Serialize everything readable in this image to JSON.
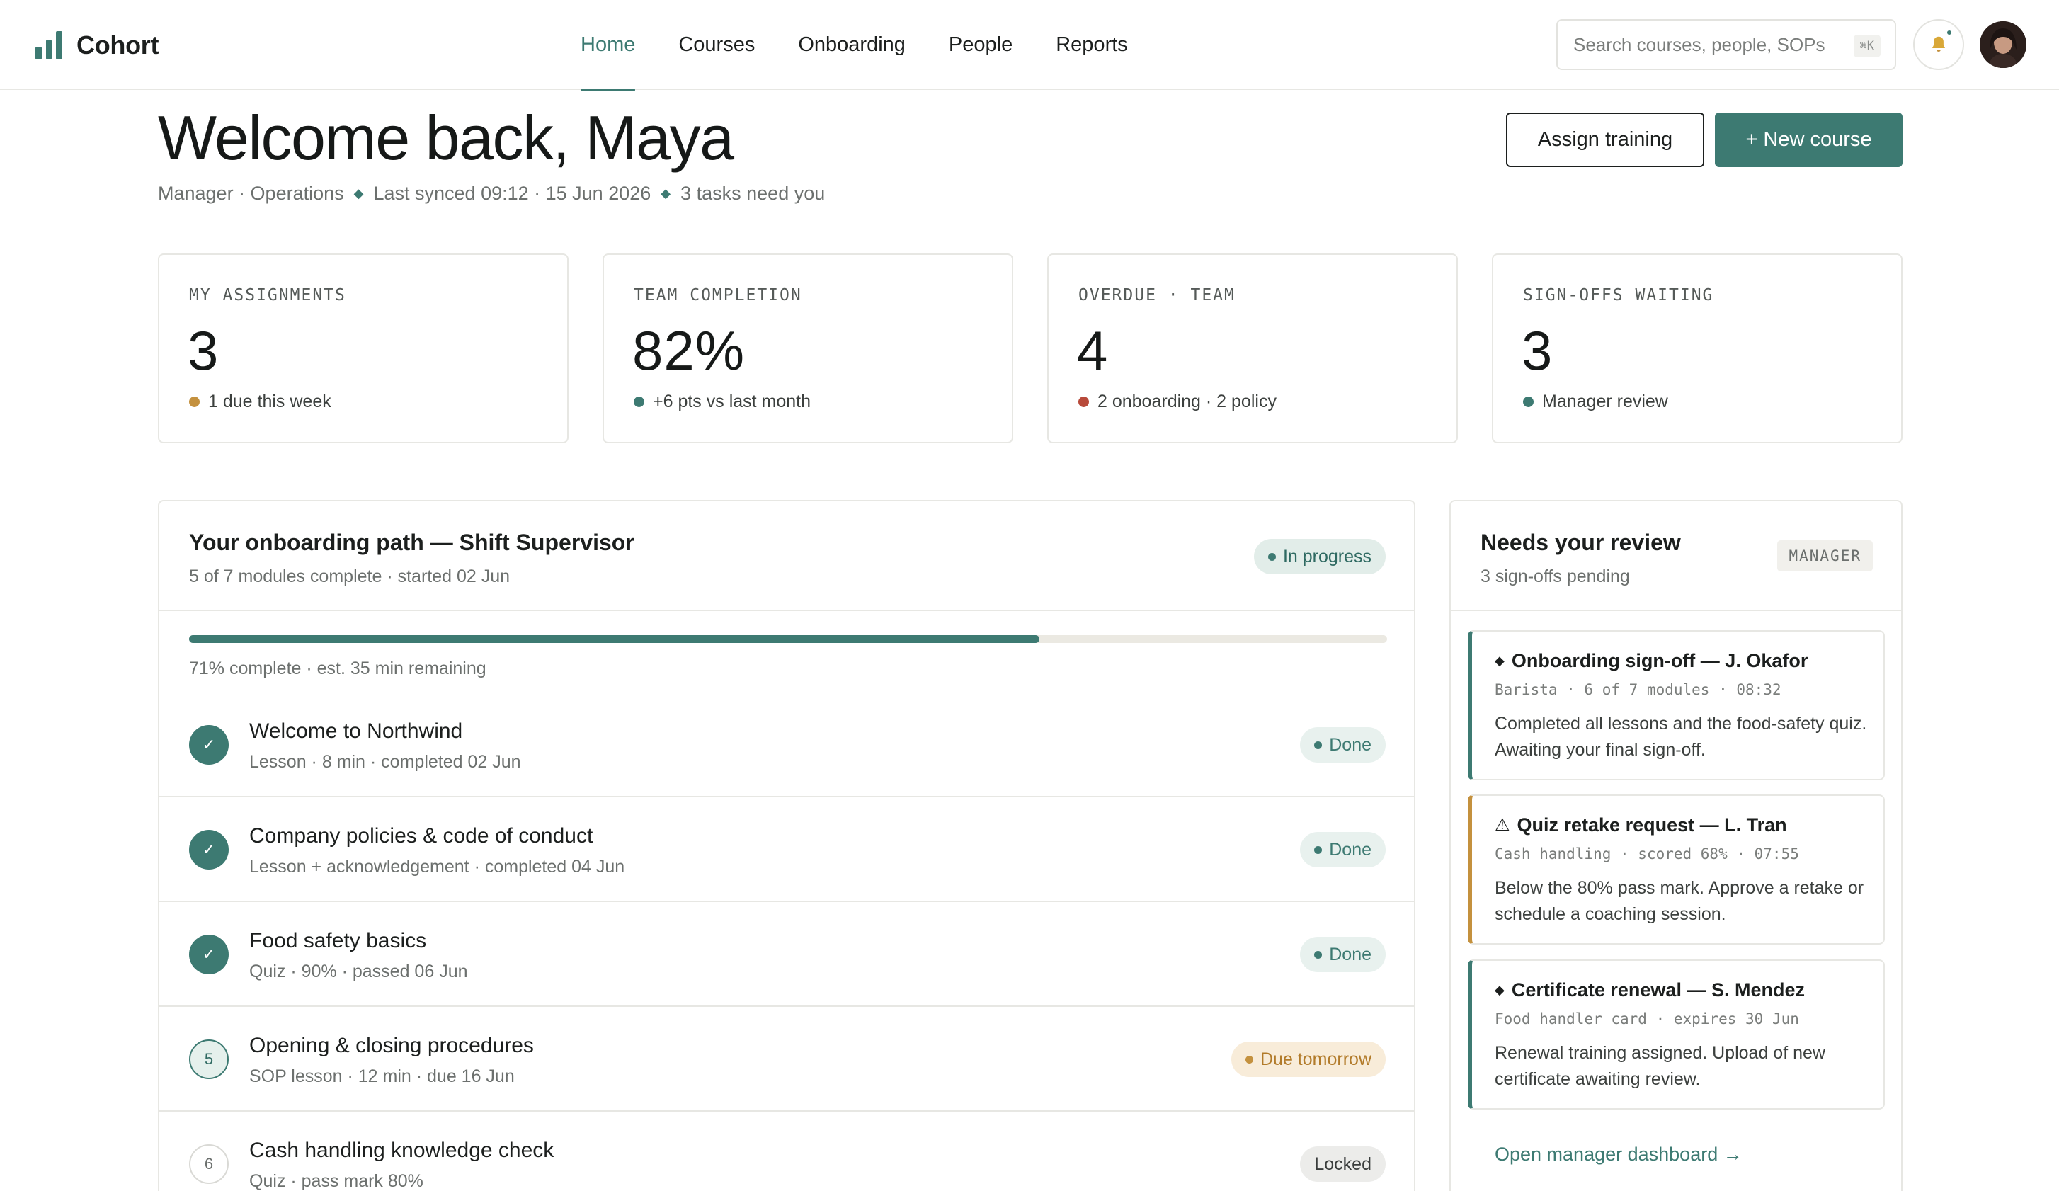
{
  "app": {
    "name": "Cohort",
    "accent": "#3d7a72"
  },
  "nav": {
    "items": [
      {
        "label": "Home",
        "active": true
      },
      {
        "label": "Courses"
      },
      {
        "label": "Onboarding"
      },
      {
        "label": "People"
      },
      {
        "label": "Reports"
      }
    ]
  },
  "search": {
    "placeholder": "Search courses, people, SOPs",
    "shortcut": "⌘K"
  },
  "header": {
    "title": "Welcome back, Maya",
    "meta": {
      "role": "Manager · Operations",
      "synced": "Last synced 09:12 · 15 Jun 2026",
      "tasks": "3 tasks need you"
    },
    "assign_label": "Assign training",
    "new_course_label": "+ New course"
  },
  "stats": [
    {
      "label": "MY ASSIGNMENTS",
      "value": "3",
      "sub": "1 due this week",
      "dot": "#c4913e"
    },
    {
      "label": "TEAM COMPLETION",
      "value": "82%",
      "sub": "+6 pts vs last month",
      "dot": "#3d7a72"
    },
    {
      "label": "OVERDUE · TEAM",
      "value": "4",
      "sub": "2 onboarding · 2 policy",
      "dot": "#b84a3a"
    },
    {
      "label": "SIGN-OFFS WAITING",
      "value": "3",
      "sub": "Manager review",
      "dot": "#3d7a72"
    }
  ],
  "onboarding": {
    "title": "Your onboarding path — Shift Supervisor",
    "subtitle": "5 of 7 modules complete · started 02 Jun",
    "status": "In progress",
    "progress": 0.71,
    "progress_text": "71% complete · est. 35 min remaining",
    "modules": [
      {
        "step": "✓",
        "title": "Welcome to Northwind",
        "sub": "Lesson · 8 min · completed 02 Jun",
        "status": "Done"
      },
      {
        "step": "✓",
        "title": "Company policies & code of conduct",
        "sub": "Lesson + acknowledgement · completed 04 Jun",
        "status": "Done"
      },
      {
        "step": "✓",
        "title": "Food safety basics",
        "sub": "Quiz · 90% · passed 06 Jun",
        "status": "Done"
      },
      {
        "step": "5",
        "title": "Opening & closing procedures",
        "sub": "SOP lesson · 12 min · due 16 Jun",
        "status": "Due tomorrow"
      },
      {
        "step": "6",
        "title": "Cash handling knowledge check",
        "sub": "Quiz · pass mark 80%",
        "status": "Locked"
      }
    ]
  },
  "review": {
    "title": "Needs your review",
    "subtitle": "3 sign-offs pending",
    "tag": "MANAGER",
    "items": [
      {
        "icon": "◆",
        "title": "Onboarding sign-off — J. Okafor",
        "meta": "Barista · 6 of 7 modules · 08:32",
        "body": "Completed all lessons and the food-safety quiz. Awaiting your final sign-off."
      },
      {
        "icon": "⚠",
        "title": "Quiz retake request — L. Tran",
        "meta": "Cash handling · scored 68% · 07:55",
        "body": "Below the 80% pass mark. Approve a retake or schedule a coaching session."
      },
      {
        "icon": "◆",
        "title": "Certificate renewal — S. Mendez",
        "meta": "Food handler card · expires 30 Jun",
        "body": "Renewal training assigned. Upload of new certificate awaiting review."
      }
    ],
    "link": "Open manager dashboard →"
  }
}
